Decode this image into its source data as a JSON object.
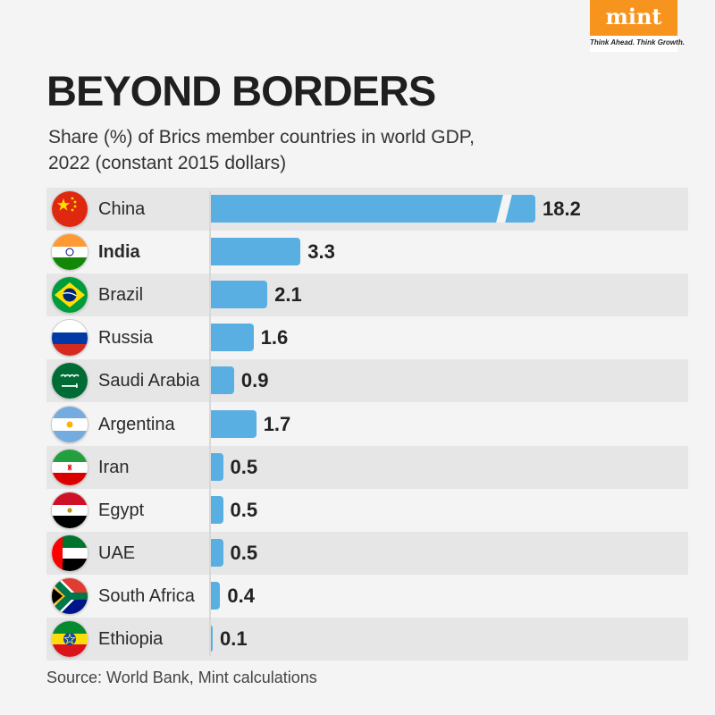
{
  "brand": {
    "logo_text": "mint",
    "tagline": "Think Ahead. Think Growth."
  },
  "title": "BEYOND BORDERS",
  "subtitle_line1": "Share (%) of Brics member countries in world GDP,",
  "subtitle_line2": "2022 (constant 2015 dollars)",
  "source": "Source: World Bank, Mint calculations",
  "colors": {
    "bar": "#5aafe2",
    "accent": "#f7941d"
  },
  "chart_data": {
    "type": "bar",
    "orientation": "horizontal",
    "title": "BEYOND BORDERS",
    "subtitle": "Share (%) of Brics member countries in world GDP, 2022 (constant 2015 dollars)",
    "xlabel": "",
    "ylabel": "",
    "axis_break": true,
    "categories": [
      "China",
      "India",
      "Brazil",
      "Russia",
      "Saudi Arabia",
      "Argentina",
      "Iran",
      "Egypt",
      "UAE",
      "South Africa",
      "Ethiopia"
    ],
    "values": [
      18.2,
      3.3,
      2.1,
      1.6,
      0.9,
      1.7,
      0.5,
      0.5,
      0.5,
      0.4,
      0.1
    ],
    "labels": [
      "18.2",
      "3.3",
      "2.1",
      "1.6",
      "0.9",
      "1.7",
      "0.5",
      "0.5",
      "0.5",
      "0.4",
      "0.1"
    ],
    "highlight": [
      "India"
    ],
    "flags": [
      "china-flag-icon",
      "india-flag-icon",
      "brazil-flag-icon",
      "russia-flag-icon",
      "saudi-arabia-flag-icon",
      "argentina-flag-icon",
      "iran-flag-icon",
      "egypt-flag-icon",
      "uae-flag-icon",
      "south-africa-flag-icon",
      "ethiopia-flag-icon"
    ]
  }
}
